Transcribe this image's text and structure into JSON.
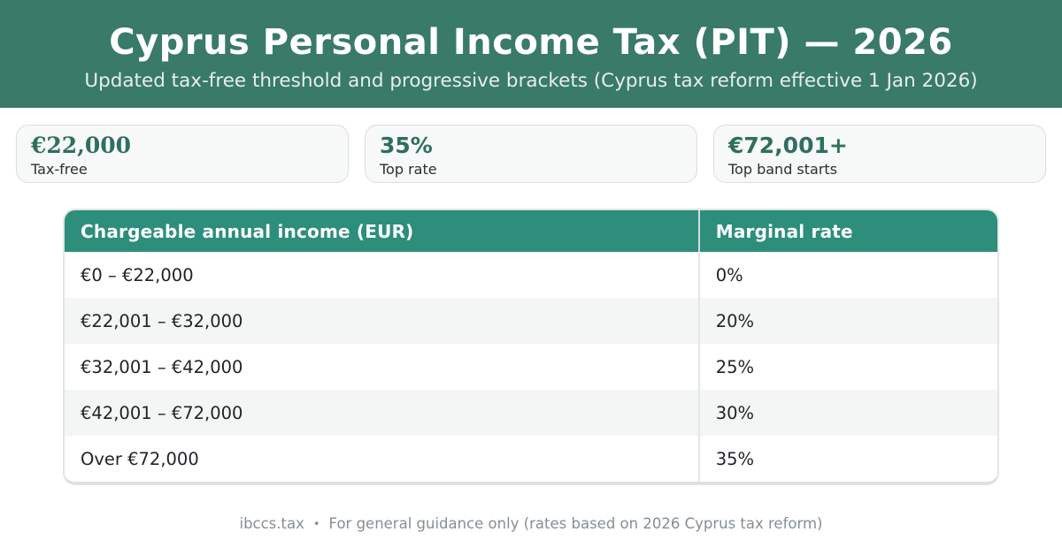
{
  "header": {
    "title": "Cyprus Personal Income Tax (PIT) — 2026",
    "subtitle": "Updated tax-free threshold and progressive brackets (Cyprus tax reform effective 1 Jan 2026)"
  },
  "stats": [
    {
      "value": "€22,000",
      "label": "Tax-free"
    },
    {
      "value": "35%",
      "label": "Top rate"
    },
    {
      "value": "€72,001+",
      "label": "Top band starts"
    }
  ],
  "table": {
    "columns": [
      "Chargeable annual income (EUR)",
      "Marginal rate"
    ],
    "rows": [
      [
        "€0 – €22,000",
        "0%"
      ],
      [
        "€22,001 – €32,000",
        "20%"
      ],
      [
        "€32,001 – €42,000",
        "25%"
      ],
      [
        "€42,001 – €72,000",
        "30%"
      ],
      [
        "Over €72,000",
        "35%"
      ]
    ]
  },
  "footer": {
    "source": "ibccs.tax",
    "separator": "•",
    "note": "For general guidance only (rates based on 2026 Cyprus tax reform)"
  },
  "colors": {
    "banner_background": "#397a69",
    "table_header_background": "#2c8e7b",
    "accent_value_text": "#2e6f60",
    "card_background": "#f7f8f8",
    "row_stripe": "#f4f6f5",
    "footer_text": "#858e94"
  },
  "chart_data": {
    "type": "table",
    "title": "Cyprus Personal Income Tax (PIT) — 2026",
    "columns": [
      "Chargeable annual income (EUR)",
      "Marginal rate"
    ],
    "rows": [
      [
        "€0 – €22,000",
        "0%"
      ],
      [
        "€22,001 – €32,000",
        "20%"
      ],
      [
        "€32,001 – €42,000",
        "25%"
      ],
      [
        "€42,001 – €72,000",
        "30%"
      ],
      [
        "Over €72,000",
        "35%"
      ]
    ],
    "brackets": [
      {
        "lower_eur": 0,
        "upper_eur": 22000,
        "marginal_rate_pct": 0
      },
      {
        "lower_eur": 22001,
        "upper_eur": 32000,
        "marginal_rate_pct": 20
      },
      {
        "lower_eur": 32001,
        "upper_eur": 42000,
        "marginal_rate_pct": 25
      },
      {
        "lower_eur": 42001,
        "upper_eur": 72000,
        "marginal_rate_pct": 30
      },
      {
        "lower_eur": 72001,
        "upper_eur": null,
        "marginal_rate_pct": 35
      }
    ],
    "highlights": {
      "tax_free_threshold_eur": 22000,
      "top_rate_pct": 35,
      "top_band_starts_eur": 72001
    }
  }
}
